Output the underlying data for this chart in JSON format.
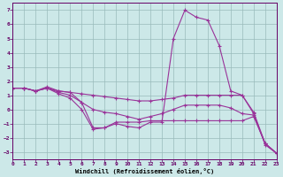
{
  "xlabel": "Windchill (Refroidissement éolien,°C)",
  "xlim": [
    0,
    23
  ],
  "ylim": [
    -3.5,
    7.5
  ],
  "yticks": [
    -3,
    -2,
    -1,
    0,
    1,
    2,
    3,
    4,
    5,
    6,
    7
  ],
  "xticks": [
    0,
    1,
    2,
    3,
    4,
    5,
    6,
    7,
    8,
    9,
    10,
    11,
    12,
    13,
    14,
    15,
    16,
    17,
    18,
    19,
    20,
    21,
    22,
    23
  ],
  "background_color": "#cce8e8",
  "line_color": "#993399",
  "grid_color": "#99bbbb",
  "lines": [
    {
      "x": [
        0,
        1,
        2,
        3,
        4,
        5,
        6,
        7,
        8,
        9,
        10,
        11,
        12,
        13,
        14,
        15,
        16,
        17,
        18,
        19,
        20,
        21,
        22,
        23
      ],
      "y": [
        1.5,
        1.5,
        1.3,
        1.6,
        1.3,
        1.2,
        0.5,
        -1.3,
        -1.3,
        -1.0,
        -1.2,
        -1.3,
        -0.9,
        -0.9,
        5.0,
        7.0,
        6.5,
        6.3,
        4.5,
        1.3,
        1.0,
        -0.3,
        -2.5,
        -3.1
      ]
    },
    {
      "x": [
        0,
        1,
        2,
        3,
        4,
        5,
        6,
        7,
        8,
        9,
        10,
        11,
        12,
        13,
        14,
        15,
        16,
        17,
        18,
        19,
        20,
        21,
        22,
        23
      ],
      "y": [
        1.5,
        1.5,
        1.3,
        1.5,
        1.3,
        1.2,
        1.1,
        1.0,
        0.9,
        0.8,
        0.7,
        0.6,
        0.6,
        0.7,
        0.8,
        1.0,
        1.0,
        1.0,
        1.0,
        1.0,
        1.0,
        -0.2,
        -2.4,
        -3.1
      ]
    },
    {
      "x": [
        0,
        1,
        2,
        3,
        4,
        5,
        6,
        7,
        8,
        9,
        10,
        11,
        12,
        13,
        14,
        15,
        16,
        17,
        18,
        19,
        20,
        21,
        22,
        23
      ],
      "y": [
        1.5,
        1.5,
        1.3,
        1.5,
        1.2,
        1.0,
        0.5,
        0.0,
        -0.2,
        -0.3,
        -0.5,
        -0.7,
        -0.5,
        -0.3,
        0.0,
        0.3,
        0.3,
        0.3,
        0.3,
        0.1,
        -0.3,
        -0.4,
        -2.4,
        -3.1
      ]
    },
    {
      "x": [
        0,
        1,
        2,
        3,
        4,
        5,
        6,
        7,
        8,
        9,
        10,
        11,
        12,
        13,
        14,
        15,
        16,
        17,
        18,
        19,
        20,
        21,
        22,
        23
      ],
      "y": [
        1.5,
        1.5,
        1.3,
        1.5,
        1.1,
        0.8,
        0.0,
        -1.4,
        -1.3,
        -0.9,
        -0.9,
        -0.9,
        -0.8,
        -0.8,
        -0.8,
        -0.8,
        -0.8,
        -0.8,
        -0.8,
        -0.8,
        -0.8,
        -0.5,
        -2.4,
        -3.1
      ]
    }
  ]
}
